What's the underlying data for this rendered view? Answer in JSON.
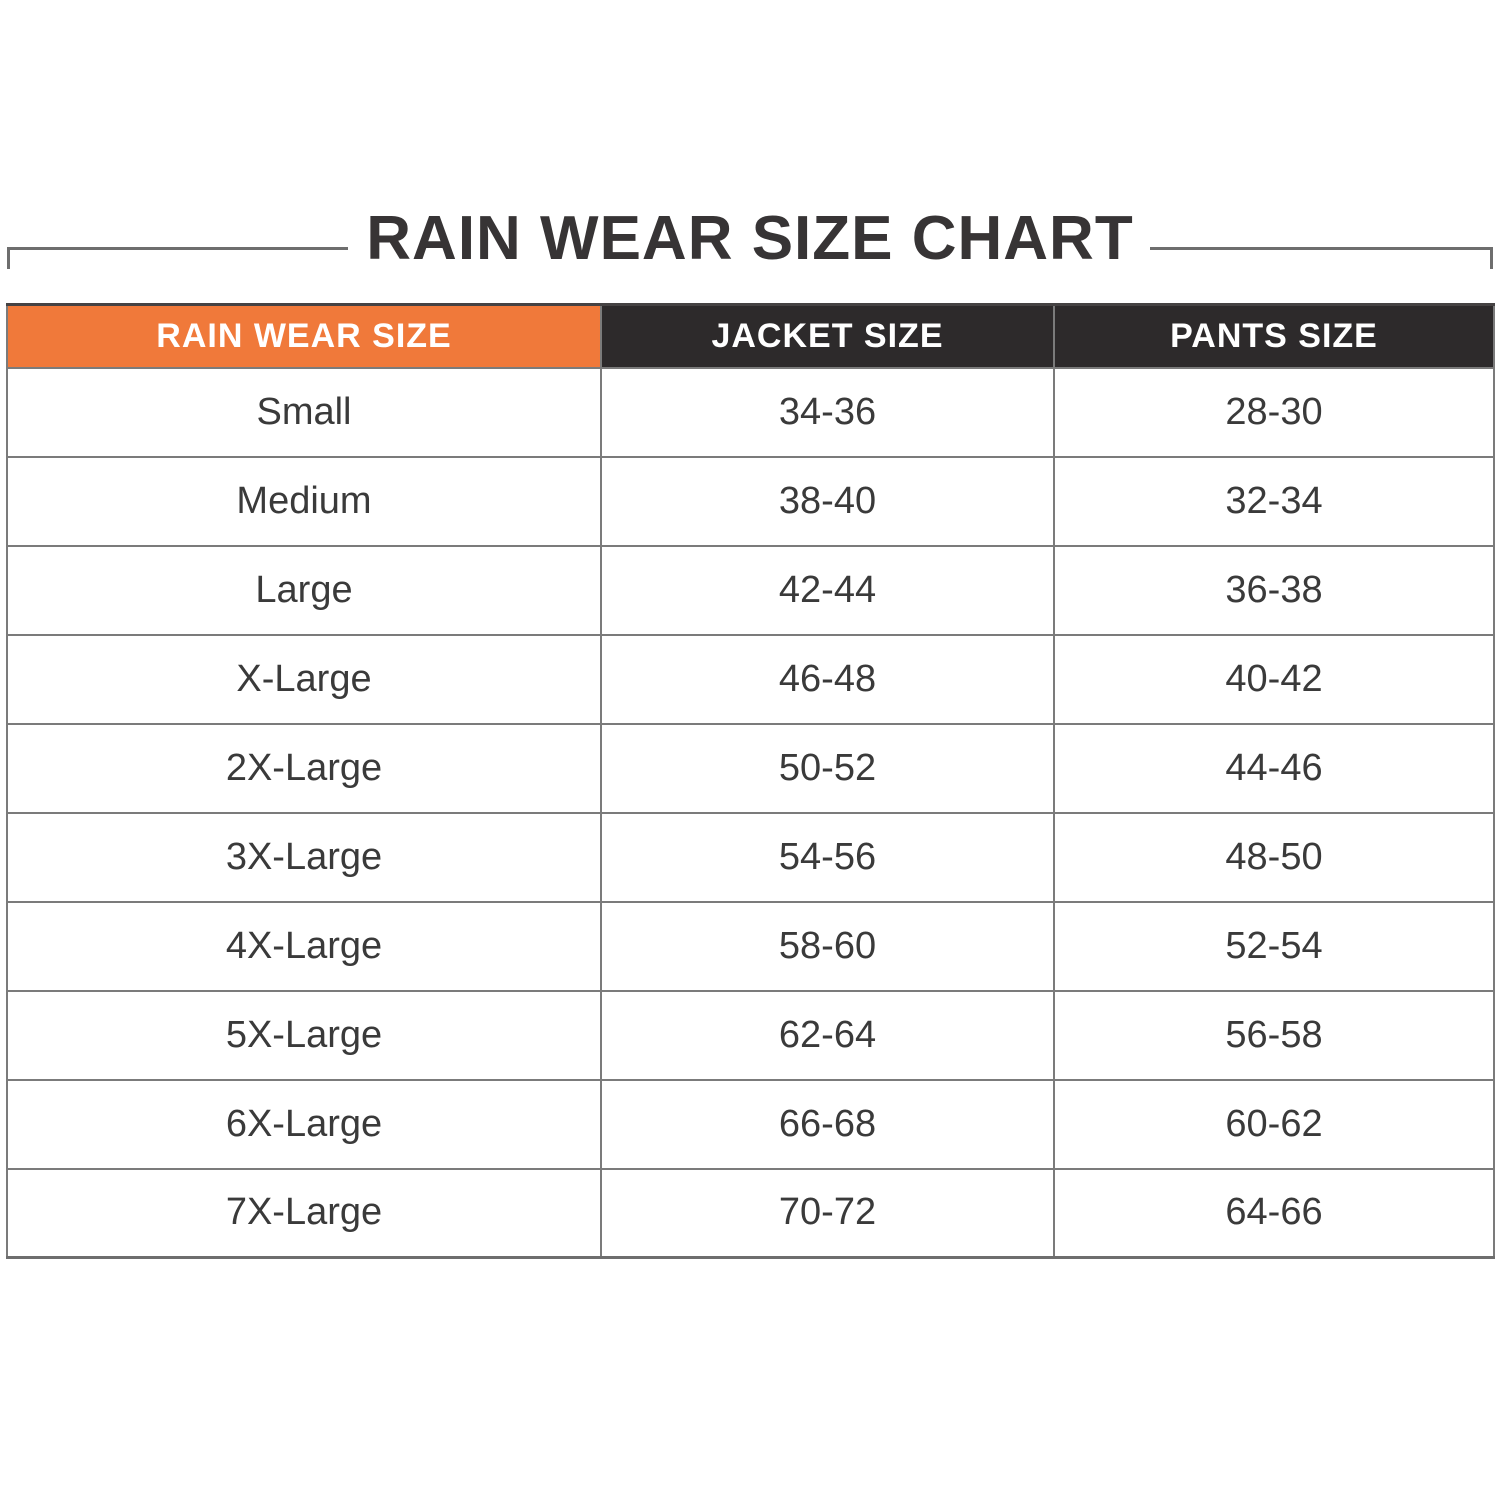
{
  "title": "RAIN WEAR SIZE CHART",
  "colors": {
    "accent_orange": "#F0793A",
    "header_dark": "#2D2A2B",
    "grid_gray": "#7B7B7B",
    "text_dark": "#3A3A3A",
    "title_dark": "#373435",
    "rule_gray": "#6E6E6E"
  },
  "chart_data": {
    "type": "table",
    "title": "RAIN WEAR SIZE CHART",
    "columns": [
      "RAIN WEAR SIZE",
      "JACKET SIZE",
      "PANTS SIZE"
    ],
    "rows": [
      {
        "rain_wear_size": "Small",
        "jacket_size": "34-36",
        "pants_size": "28-30"
      },
      {
        "rain_wear_size": "Medium",
        "jacket_size": "38-40",
        "pants_size": "32-34"
      },
      {
        "rain_wear_size": "Large",
        "jacket_size": "42-44",
        "pants_size": "36-38"
      },
      {
        "rain_wear_size": "X-Large",
        "jacket_size": "46-48",
        "pants_size": "40-42"
      },
      {
        "rain_wear_size": "2X-Large",
        "jacket_size": "50-52",
        "pants_size": "44-46"
      },
      {
        "rain_wear_size": "3X-Large",
        "jacket_size": "54-56",
        "pants_size": "48-50"
      },
      {
        "rain_wear_size": "4X-Large",
        "jacket_size": "58-60",
        "pants_size": "52-54"
      },
      {
        "rain_wear_size": "5X-Large",
        "jacket_size": "62-64",
        "pants_size": "56-58"
      },
      {
        "rain_wear_size": "6X-Large",
        "jacket_size": "66-68",
        "pants_size": "60-62"
      },
      {
        "rain_wear_size": "7X-Large",
        "jacket_size": "70-72",
        "pants_size": "64-66"
      }
    ]
  }
}
